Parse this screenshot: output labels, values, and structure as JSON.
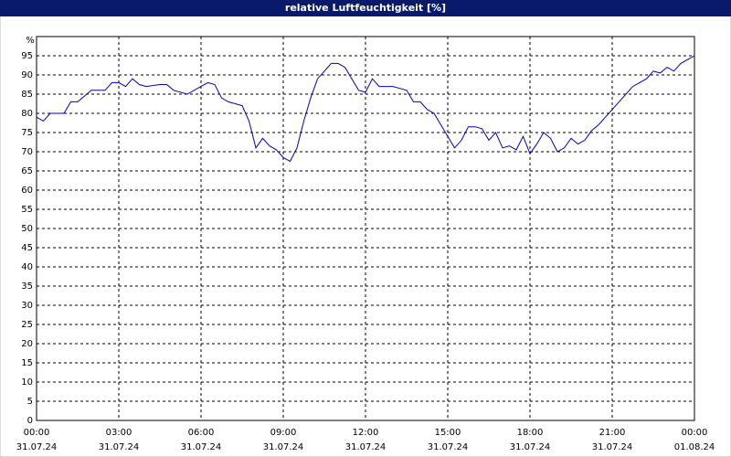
{
  "chart_data": {
    "type": "line",
    "title": "relative Luftfeuchtigkeit [%]",
    "y_label": "%",
    "x": [
      0,
      0.25,
      0.5,
      1,
      1.25,
      1.5,
      2,
      2.5,
      2.75,
      3,
      3.25,
      3.5,
      3.75,
      4,
      4.5,
      4.75,
      5,
      5.5,
      6,
      6.25,
      6.5,
      6.75,
      7,
      7.5,
      7.75,
      8,
      8.25,
      8.5,
      8.75,
      9,
      9.25,
      9.5,
      9.75,
      10,
      10.25,
      10.5,
      10.75,
      11,
      11.25,
      11.5,
      11.75,
      12,
      12.25,
      12.5,
      13,
      13.25,
      13.5,
      13.75,
      14,
      14.25,
      14.5,
      14.75,
      15,
      15.25,
      15.5,
      15.75,
      16,
      16.25,
      16.5,
      16.75,
      17,
      17.25,
      17.5,
      17.75,
      18,
      18.25,
      18.5,
      18.75,
      19,
      19.25,
      19.5,
      19.75,
      20,
      20.25,
      20.5,
      20.75,
      21,
      21.25,
      21.5,
      21.75,
      22,
      22.25,
      22.5,
      22.75,
      23,
      23.25,
      23.5,
      23.75,
      24
    ],
    "series": [
      {
        "name": "relative Luftfeuchtigkeit",
        "color": "#0000c0",
        "values": [
          79,
          78,
          80,
          80,
          83,
          83,
          86,
          86,
          88,
          88,
          87,
          89,
          87.5,
          87,
          87.5,
          87.5,
          86,
          85,
          87,
          88,
          87.5,
          84,
          83,
          82,
          78,
          71,
          73.5,
          71.5,
          70.5,
          68.5,
          67.5,
          71,
          78,
          84,
          89,
          91,
          93,
          93,
          92,
          89,
          86,
          85.5,
          89,
          87,
          87,
          86.5,
          86,
          83,
          83,
          81,
          80,
          77,
          74,
          71,
          73,
          76.5,
          76.5,
          76,
          73,
          75,
          71,
          71.5,
          70.5,
          74,
          69.5,
          72,
          75,
          73.5,
          70,
          71,
          73.5,
          72,
          73,
          75.5,
          77,
          79,
          81,
          83,
          85,
          87,
          88,
          89,
          91,
          90.5,
          92,
          91,
          93,
          94,
          95
        ]
      }
    ],
    "xlim": [
      0,
      24
    ],
    "xticks": [
      {
        "value": 0,
        "label": "00:00"
      },
      {
        "value": 3,
        "label": "03:00"
      },
      {
        "value": 6,
        "label": "06:00"
      },
      {
        "value": 9,
        "label": "09:00"
      },
      {
        "value": 12,
        "label": "12:00"
      },
      {
        "value": 15,
        "label": "15:00"
      },
      {
        "value": 18,
        "label": "18:00"
      },
      {
        "value": 21,
        "label": "21:00"
      },
      {
        "value": 24,
        "label": "00:00"
      }
    ],
    "xtick_dates": [
      "31.07.24",
      "31.07.24",
      "31.07.24",
      "31.07.24",
      "31.07.24",
      "31.07.24",
      "31.07.24",
      "31.07.24",
      "01.08.24"
    ],
    "ylim": [
      0,
      100
    ],
    "yticks": [
      0,
      5,
      10,
      15,
      20,
      25,
      30,
      35,
      40,
      45,
      50,
      55,
      60,
      65,
      70,
      75,
      80,
      85,
      90,
      95
    ],
    "grid": true
  }
}
